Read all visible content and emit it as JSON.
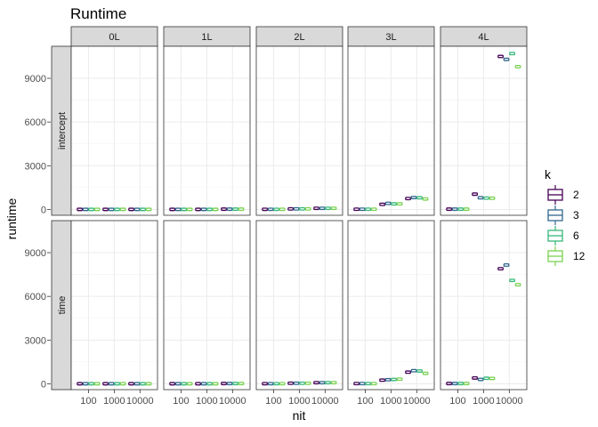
{
  "chart_data": {
    "type": "boxplot",
    "title": "Runtime",
    "xlabel": "nit",
    "ylabel": "runtime",
    "facet_cols": [
      "0L",
      "1L",
      "2L",
      "3L",
      "4L"
    ],
    "facet_rows": [
      "intercept",
      "time"
    ],
    "x_categories": [
      "100",
      "1000",
      "10000"
    ],
    "y_ticks": [
      0,
      3000,
      6000,
      9000
    ],
    "ylim": [
      -400,
      11200
    ],
    "grid": true,
    "legend": {
      "title": "k",
      "placement": "right",
      "entries": [
        {
          "label": "2",
          "color": "#440154"
        },
        {
          "label": "3",
          "color": "#31688e"
        },
        {
          "label": "6",
          "color": "#35b779"
        },
        {
          "label": "12",
          "color": "#7ad151"
        }
      ]
    },
    "values": {
      "intercept": {
        "0L": {
          "100": [
            5,
            5,
            5,
            5
          ],
          "1000": [
            5,
            5,
            5,
            5
          ],
          "10000": [
            5,
            5,
            5,
            5
          ]
        },
        "1L": {
          "100": [
            5,
            5,
            5,
            5
          ],
          "1000": [
            5,
            5,
            5,
            5
          ],
          "10000": [
            20,
            20,
            20,
            20
          ]
        },
        "2L": {
          "100": [
            10,
            10,
            10,
            10
          ],
          "1000": [
            40,
            40,
            40,
            40
          ],
          "10000": [
            80,
            80,
            80,
            80
          ]
        },
        "3L": {
          "100": [
            15,
            15,
            15,
            15
          ],
          "1000": [
            350,
            420,
            380,
            390
          ],
          "10000": [
            750,
            820,
            800,
            720
          ]
        },
        "4L": {
          "100": [
            20,
            20,
            20,
            20
          ],
          "1000": [
            1050,
            800,
            780,
            770
          ],
          "10000": [
            10500,
            10300,
            10700,
            9800
          ]
        }
      },
      "time": {
        "0L": {
          "100": [
            5,
            5,
            5,
            5
          ],
          "1000": [
            5,
            5,
            5,
            5
          ],
          "10000": [
            5,
            5,
            5,
            5
          ]
        },
        "1L": {
          "100": [
            5,
            5,
            5,
            5
          ],
          "1000": [
            5,
            5,
            5,
            5
          ],
          "10000": [
            20,
            20,
            20,
            20
          ]
        },
        "2L": {
          "100": [
            10,
            10,
            10,
            10
          ],
          "1000": [
            40,
            40,
            40,
            40
          ],
          "10000": [
            80,
            80,
            80,
            80
          ]
        },
        "3L": {
          "100": [
            15,
            15,
            15,
            15
          ],
          "1000": [
            250,
            280,
            300,
            320
          ],
          "10000": [
            800,
            900,
            880,
            720
          ]
        },
        "4L": {
          "100": [
            20,
            20,
            20,
            20
          ],
          "1000": [
            400,
            300,
            380,
            370
          ],
          "10000": [
            7900,
            8150,
            7100,
            6800
          ]
        }
      }
    }
  }
}
